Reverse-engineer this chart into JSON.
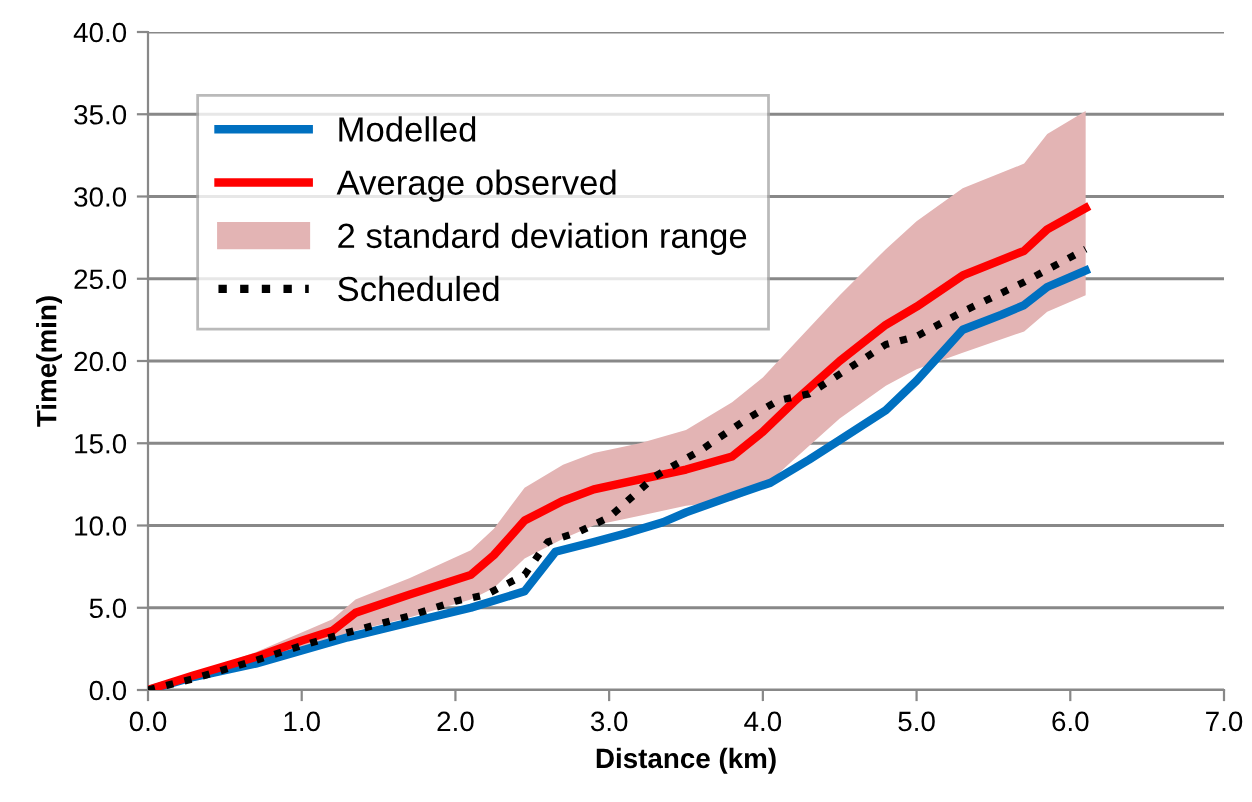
{
  "chart_data": {
    "type": "line",
    "xlabel": "Distance (km)",
    "ylabel": "Time(min)",
    "xlim": [
      0,
      7
    ],
    "ylim": [
      0,
      40
    ],
    "xticks": [
      {
        "value": 0,
        "label": "0.0"
      },
      {
        "value": 1,
        "label": "1.0"
      },
      {
        "value": 2,
        "label": "2.0"
      },
      {
        "value": 3,
        "label": "3.0"
      },
      {
        "value": 4,
        "label": "4.0"
      },
      {
        "value": 5,
        "label": "5.0"
      },
      {
        "value": 6,
        "label": "6.0"
      },
      {
        "value": 7,
        "label": "7.0"
      }
    ],
    "yticks": [
      {
        "value": 0,
        "label": "0.0"
      },
      {
        "value": 5,
        "label": "5.0"
      },
      {
        "value": 10,
        "label": "10.0"
      },
      {
        "value": 15,
        "label": "15.0"
      },
      {
        "value": 20,
        "label": "20.0"
      },
      {
        "value": 25,
        "label": "25.0"
      },
      {
        "value": 30,
        "label": "30.0"
      },
      {
        "value": 35,
        "label": "35.0"
      },
      {
        "value": 40,
        "label": "40.0"
      }
    ],
    "grid": "y",
    "legend": "top left",
    "series": [
      {
        "name": "Modelled",
        "color": "#0070c0",
        "line_style": "solid",
        "x": [
          0,
          0.3,
          0.7,
          1.0,
          1.3,
          1.7,
          2.1,
          2.45,
          2.65,
          2.9,
          3.1,
          3.35,
          3.5,
          3.8,
          4.05,
          4.3,
          4.5,
          4.8,
          5.0,
          5.3,
          5.55,
          5.7,
          5.85,
          6.1
        ],
        "values": [
          0,
          0.8,
          1.6,
          2.4,
          3.2,
          4.1,
          5.0,
          6.0,
          8.4,
          9.0,
          9.5,
          10.2,
          10.8,
          11.8,
          12.6,
          14.0,
          15.2,
          17.0,
          18.8,
          21.9,
          22.8,
          23.4,
          24.5,
          25.5
        ]
      },
      {
        "name": "Average observed",
        "color": "#ff0000",
        "line_style": "solid",
        "x": [
          0,
          0.3,
          0.7,
          1.0,
          1.2,
          1.35,
          1.7,
          2.1,
          2.25,
          2.45,
          2.7,
          2.9,
          3.2,
          3.5,
          3.8,
          4.0,
          4.2,
          4.5,
          4.8,
          5.0,
          5.3,
          5.7,
          5.85,
          6.1
        ],
        "values": [
          0,
          0.9,
          2.0,
          3.0,
          3.6,
          4.7,
          5.8,
          7.0,
          8.2,
          10.3,
          11.5,
          12.2,
          12.8,
          13.4,
          14.2,
          15.7,
          17.5,
          20.0,
          22.2,
          23.3,
          25.2,
          26.7,
          28.0,
          29.3
        ]
      },
      {
        "name": "2 standard deviation range",
        "type": "area",
        "color": "#e3b4b4",
        "x": [
          0,
          0.3,
          0.7,
          1.0,
          1.2,
          1.35,
          1.7,
          2.1,
          2.25,
          2.45,
          2.7,
          2.9,
          3.2,
          3.5,
          3.8,
          4.0,
          4.2,
          4.5,
          4.8,
          5.0,
          5.3,
          5.7,
          5.85,
          6.1
        ],
        "lower": [
          0,
          0.8,
          1.7,
          2.5,
          3.0,
          3.6,
          4.4,
          5.5,
          6.2,
          8.0,
          9.2,
          10.0,
          10.6,
          11.2,
          11.5,
          12.3,
          14.0,
          16.5,
          18.5,
          19.5,
          20.5,
          21.8,
          23.0,
          24.0
        ],
        "upper": [
          0,
          1.0,
          2.3,
          3.5,
          4.3,
          5.5,
          6.8,
          8.5,
          9.8,
          12.3,
          13.7,
          14.4,
          15.0,
          15.8,
          17.5,
          19.0,
          21.0,
          24.0,
          26.8,
          28.5,
          30.5,
          32.0,
          33.8,
          35.2
        ],
        "values": [
          null,
          null,
          null,
          null,
          null,
          null,
          null,
          null,
          null,
          null,
          null,
          null,
          null,
          null,
          null,
          null,
          null,
          null,
          null,
          null,
          null,
          null,
          null,
          null
        ]
      },
      {
        "name": "Scheduled",
        "color": "#000000",
        "line_style": "dotted",
        "x": [
          0,
          0.3,
          0.7,
          1.0,
          1.3,
          1.7,
          2.0,
          2.2,
          2.45,
          2.6,
          2.8,
          3.0,
          3.3,
          3.6,
          3.9,
          4.1,
          4.3,
          4.6,
          4.8,
          5.0,
          5.3,
          5.7,
          6.0,
          6.1
        ],
        "values": [
          0,
          0.7,
          1.8,
          2.7,
          3.5,
          4.5,
          5.4,
          5.8,
          7.0,
          9.0,
          9.6,
          10.5,
          13.0,
          14.6,
          16.5,
          17.6,
          18.0,
          19.8,
          21.0,
          21.5,
          23.0,
          24.8,
          26.3,
          26.8
        ]
      }
    ]
  }
}
